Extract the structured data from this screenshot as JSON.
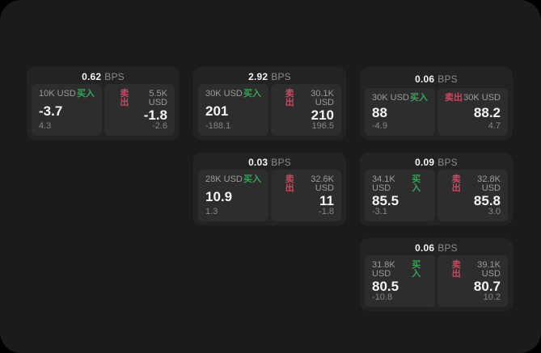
{
  "labels": {
    "buy": "买入",
    "sell": "卖出",
    "bps_unit": "BPS"
  },
  "colors": {
    "buy_green": "#38a158",
    "sell_red": "#c84a60",
    "panel_bg": "#1b1b1c",
    "card_bg": "#232324",
    "tile_bg": "#2d2d2e"
  },
  "cards": [
    {
      "row": 1,
      "col": 1,
      "bps": "0.62",
      "buy": {
        "amount": "10K USD",
        "value": "-3.7",
        "sub": "4.3"
      },
      "sell": {
        "amount": "5.5K USD",
        "value": "-1.8",
        "sub": "-2.6"
      }
    },
    {
      "row": 1,
      "col": 2,
      "bps": "2.92",
      "buy": {
        "amount": "30K USD",
        "value": "201",
        "sub": "-188.1"
      },
      "sell": {
        "amount": "30.1K USD",
        "value": "210",
        "sub": "196.5"
      }
    },
    {
      "row": 1,
      "col": 3,
      "bps": "0.06",
      "buy": {
        "amount": "30K USD",
        "value": "88",
        "sub": "-4.9"
      },
      "sell": {
        "amount": "30K USD",
        "value": "88.2",
        "sub": "4.7"
      }
    },
    {
      "row": 2,
      "col": 2,
      "bps": "0.03",
      "buy": {
        "amount": "28K USD",
        "value": "10.9",
        "sub": "1.3"
      },
      "sell": {
        "amount": "32.6K USD",
        "value": "11",
        "sub": "-1.8"
      }
    },
    {
      "row": 2,
      "col": 3,
      "bps": "0.09",
      "buy": {
        "amount": "34.1K USD",
        "value": "85.5",
        "sub": "-3.1"
      },
      "sell": {
        "amount": "32.8K USD",
        "value": "85.8",
        "sub": "3.0"
      }
    },
    {
      "row": 3,
      "col": 3,
      "bps": "0.06",
      "buy": {
        "amount": "31.8K USD",
        "value": "80.5",
        "sub": "-10.8"
      },
      "sell": {
        "amount": "39.1K USD",
        "value": "80.7",
        "sub": "10.2"
      }
    }
  ]
}
